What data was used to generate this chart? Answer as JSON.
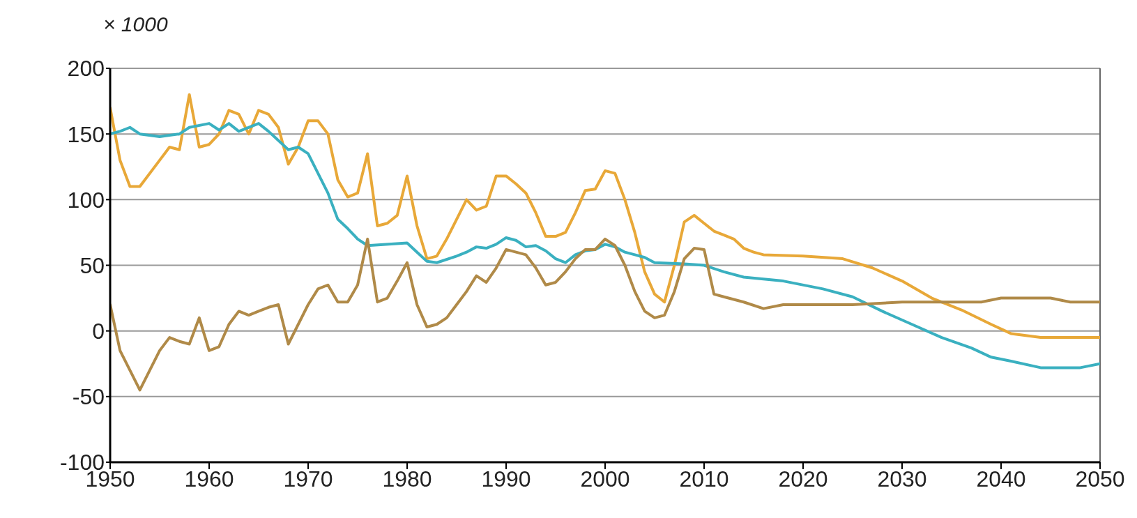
{
  "chart_data": {
    "type": "line",
    "ylabel": "× 1000",
    "xlim": [
      1950,
      2050
    ],
    "xticks": [
      1950,
      1960,
      1970,
      1980,
      1990,
      2000,
      2010,
      2020,
      2030,
      2040,
      2050
    ],
    "ylim": [
      -100,
      200
    ],
    "yticks": [
      -100,
      -50,
      0,
      50,
      100,
      150,
      200
    ],
    "grid": "y",
    "marker": "none",
    "line_style": "solid",
    "series": [
      {
        "color": "#e8a838",
        "x": [
          1950,
          1951,
          1952,
          1953,
          1955,
          1956,
          1957,
          1958,
          1959,
          1960,
          1961,
          1962,
          1963,
          1964,
          1965,
          1966,
          1967,
          1968,
          1969,
          1970,
          1971,
          1972,
          1973,
          1974,
          1975,
          1976,
          1977,
          1978,
          1979,
          1980,
          1981,
          1982,
          1983,
          1984,
          1985,
          1986,
          1987,
          1988,
          1989,
          1990,
          1991,
          1992,
          1993,
          1994,
          1995,
          1996,
          1997,
          1998,
          1999,
          2000,
          2001,
          2002,
          2003,
          2004,
          2005,
          2006,
          2007,
          2008,
          2009,
          2010,
          2011,
          2012,
          2013,
          2014,
          2015,
          2016,
          2020,
          2024,
          2027,
          2030,
          2033,
          2036,
          2039,
          2041,
          2044,
          2050
        ],
        "values": [
          170,
          130,
          110,
          110,
          130,
          140,
          138,
          180,
          140,
          142,
          150,
          168,
          165,
          150,
          168,
          165,
          155,
          127,
          140,
          160,
          160,
          150,
          115,
          102,
          105,
          135,
          80,
          82,
          88,
          118,
          80,
          55,
          57,
          70,
          85,
          100,
          92,
          95,
          118,
          118,
          112,
          105,
          90,
          72,
          72,
          75,
          90,
          107,
          108,
          122,
          120,
          100,
          75,
          45,
          28,
          22,
          50,
          83,
          88,
          82,
          76,
          73,
          70,
          63,
          60,
          58,
          57,
          55,
          48,
          38,
          25,
          16,
          5,
          -2,
          -5,
          -5
        ]
      },
      {
        "color": "#3ab0c0",
        "x": [
          1950,
          1951,
          1952,
          1953,
          1955,
          1957,
          1958,
          1960,
          1961,
          1962,
          1963,
          1965,
          1966,
          1967,
          1968,
          1969,
          1970,
          1971,
          1972,
          1973,
          1974,
          1975,
          1976,
          1980,
          1981,
          1982,
          1983,
          1985,
          1986,
          1987,
          1988,
          1989,
          1990,
          1991,
          1992,
          1993,
          1994,
          1995,
          1996,
          1997,
          1998,
          1999,
          2000,
          2001,
          2002,
          2003,
          2004,
          2005,
          2008,
          2010,
          2012,
          2014,
          2018,
          2022,
          2025,
          2028,
          2031,
          2034,
          2037,
          2039,
          2041,
          2044,
          2048,
          2050
        ],
        "values": [
          150,
          152,
          155,
          150,
          148,
          150,
          155,
          158,
          153,
          158,
          152,
          158,
          152,
          145,
          138,
          140,
          135,
          120,
          105,
          85,
          78,
          70,
          65,
          67,
          60,
          53,
          52,
          57,
          60,
          64,
          63,
          66,
          71,
          69,
          64,
          65,
          61,
          55,
          52,
          58,
          61,
          62,
          66,
          64,
          60,
          58,
          56,
          52,
          51,
          50,
          45,
          41,
          38,
          32,
          26,
          15,
          5,
          -5,
          -13,
          -20,
          -23,
          -28,
          -28,
          -25
        ]
      },
      {
        "color": "#b08a48",
        "x": [
          1950,
          1951,
          1952,
          1953,
          1954,
          1955,
          1956,
          1957,
          1958,
          1959,
          1960,
          1961,
          1962,
          1963,
          1964,
          1965,
          1966,
          1967,
          1968,
          1969,
          1970,
          1971,
          1972,
          1973,
          1974,
          1975,
          1976,
          1977,
          1978,
          1979,
          1980,
          1981,
          1982,
          1983,
          1984,
          1985,
          1986,
          1987,
          1988,
          1989,
          1990,
          1991,
          1992,
          1993,
          1994,
          1995,
          1996,
          1997,
          1998,
          1999,
          2000,
          2001,
          2002,
          2003,
          2004,
          2005,
          2006,
          2007,
          2008,
          2009,
          2010,
          2011,
          2012,
          2014,
          2016,
          2018,
          2025,
          2030,
          2035,
          2038,
          2040,
          2045,
          2047,
          2050
        ],
        "values": [
          20,
          -15,
          -30,
          -45,
          -30,
          -15,
          -5,
          -8,
          -10,
          10,
          -15,
          -12,
          5,
          15,
          12,
          15,
          18,
          20,
          -10,
          5,
          20,
          32,
          35,
          22,
          22,
          35,
          70,
          22,
          25,
          38,
          52,
          20,
          3,
          5,
          10,
          20,
          30,
          42,
          37,
          48,
          62,
          60,
          58,
          48,
          35,
          37,
          45,
          55,
          62,
          62,
          70,
          65,
          50,
          30,
          15,
          10,
          12,
          30,
          55,
          63,
          62,
          28,
          26,
          22,
          17,
          20,
          20,
          22,
          22,
          22,
          25,
          25,
          22,
          22
        ]
      }
    ]
  }
}
